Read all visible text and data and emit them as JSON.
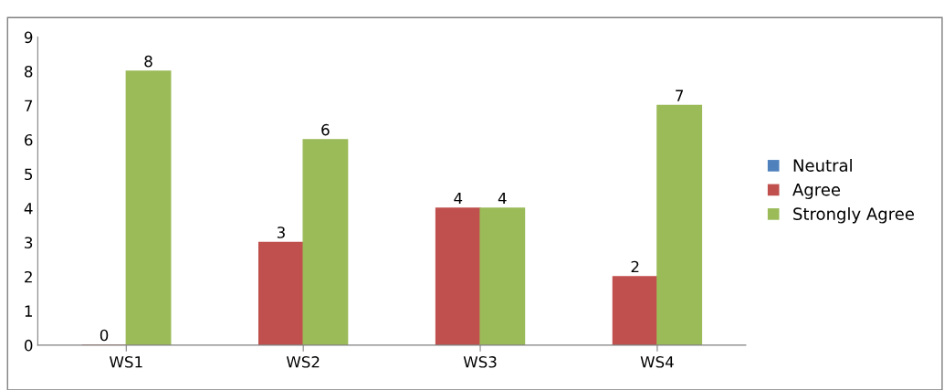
{
  "chart_data": {
    "type": "bar",
    "categories": [
      "WS1",
      "WS2",
      "WS3",
      "WS4"
    ],
    "series": [
      {
        "name": "Neutral",
        "color": "#4f81bd",
        "values": [
          null,
          null,
          null,
          null
        ]
      },
      {
        "name": "Agree",
        "color": "#c0504d",
        "values": [
          0,
          3,
          4,
          2
        ]
      },
      {
        "name": "Strongly Agree",
        "color": "#9bbb59",
        "values": [
          8,
          6,
          4,
          7
        ]
      }
    ],
    "ylim": [
      0,
      9
    ],
    "yticks": [
      0,
      1,
      2,
      3,
      4,
      5,
      6,
      7,
      8,
      9
    ],
    "data_labels": true,
    "legend": "right",
    "grid": false
  }
}
